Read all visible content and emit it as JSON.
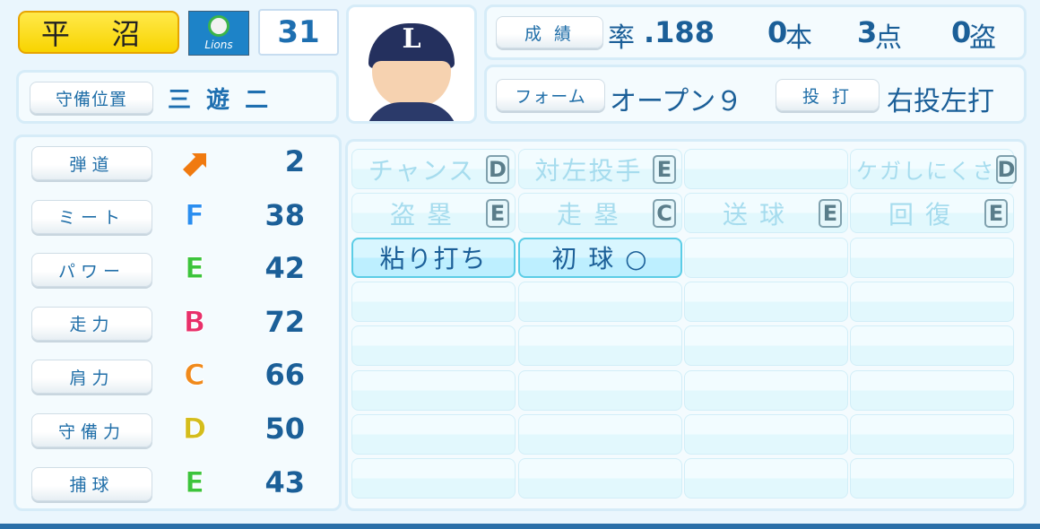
{
  "player": {
    "name": "平 沼",
    "team_logo_text": "Lions",
    "number": "31"
  },
  "position": {
    "label": "守備位置",
    "values": "三 遊 二"
  },
  "stats": {
    "button": "成 績",
    "avg_label": "率",
    "avg": ".188",
    "hr": "0",
    "hr_unit": "本",
    "rbi": "3",
    "rbi_unit": "点",
    "sb": "0",
    "sb_unit": "盗"
  },
  "form": {
    "button": "フォーム",
    "value": "オープン９",
    "throwbat_button": "投 打",
    "throwbat": "右投左打"
  },
  "abilities": [
    {
      "label": "弾道",
      "grade": "",
      "icon": "trajectory-arrow-icon",
      "value": "2",
      "color": "#f07a10"
    },
    {
      "label": "ミート",
      "grade": "F",
      "value": "38",
      "color": "#2a8ef0"
    },
    {
      "label": "パワー",
      "grade": "E",
      "value": "42",
      "color": "#3cc43c"
    },
    {
      "label": "走力",
      "grade": "B",
      "value": "72",
      "color": "#e8306a"
    },
    {
      "label": "肩力",
      "grade": "C",
      "value": "66",
      "color": "#f08a1c"
    },
    {
      "label": "守備力",
      "grade": "D",
      "value": "50",
      "color": "#d4bd1c"
    },
    {
      "label": "捕球",
      "grade": "E",
      "value": "43",
      "color": "#3cc43c"
    }
  ],
  "skills": [
    {
      "label": "チャンス",
      "grade": "D"
    },
    {
      "label": "対左投手",
      "grade": "E"
    },
    {
      "label": "",
      "grade": ""
    },
    {
      "label": "ケガしにくさ",
      "grade": "D"
    },
    {
      "label": "盗 塁",
      "grade": "E"
    },
    {
      "label": "走 塁",
      "grade": "C"
    },
    {
      "label": "送 球",
      "grade": "E"
    },
    {
      "label": "回 復",
      "grade": "E"
    },
    {
      "label": "粘り打ち",
      "grade": "",
      "active": true
    },
    {
      "label": "初 球 ○",
      "grade": "",
      "active": true
    },
    {
      "label": "",
      "grade": ""
    },
    {
      "label": "",
      "grade": ""
    }
  ]
}
